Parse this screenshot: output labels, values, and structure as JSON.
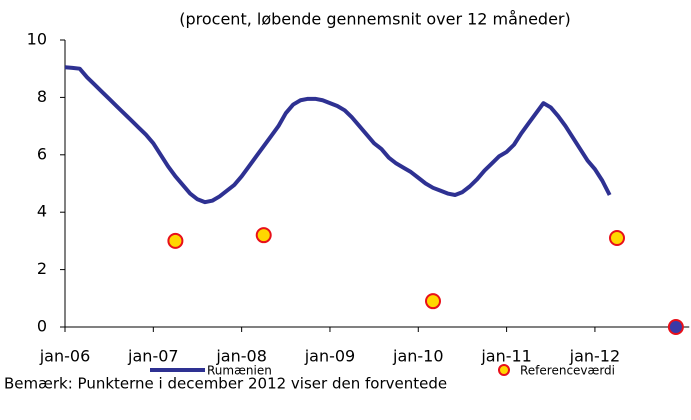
{
  "chart_data": {
    "type": "line",
    "title": "(procent, løbende gennemsnit over 12 måneder)",
    "note": "Bemærk: Punkterne i december 2012  viser den forventede",
    "categories": [
      "jan-06",
      null,
      null,
      null,
      null,
      null,
      null,
      null,
      null,
      null,
      null,
      null,
      "jan-07",
      null,
      null,
      null,
      null,
      null,
      null,
      null,
      null,
      null,
      null,
      null,
      "jan-08",
      null,
      null,
      null,
      null,
      null,
      null,
      null,
      null,
      null,
      null,
      null,
      "jan-09",
      null,
      null,
      null,
      null,
      null,
      null,
      null,
      null,
      null,
      null,
      null,
      "jan-10",
      null,
      null,
      null,
      null,
      null,
      null,
      null,
      null,
      null,
      null,
      null,
      "jan-11",
      null,
      null,
      null,
      null,
      null,
      null,
      null,
      null,
      null,
      null,
      null,
      "jan-12",
      null,
      null,
      null,
      null,
      null,
      null,
      null,
      null,
      null,
      null,
      null,
      null
    ],
    "series": [
      {
        "name": "Rumænien",
        "type": "line",
        "color": "#2e3192",
        "values": [
          9.05,
          9.03,
          9.0,
          8.7,
          8.45,
          8.2,
          7.95,
          7.7,
          7.45,
          7.2,
          6.95,
          6.7,
          6.4,
          6.0,
          5.6,
          5.25,
          4.95,
          4.65,
          4.45,
          4.35,
          4.4,
          4.55,
          4.75,
          4.95,
          5.25,
          5.6,
          5.95,
          6.3,
          6.65,
          7.0,
          7.45,
          7.75,
          7.9,
          7.95,
          7.95,
          7.9,
          7.8,
          7.7,
          7.55,
          7.3,
          7.0,
          6.7,
          6.4,
          6.2,
          5.9,
          5.7,
          5.55,
          5.4,
          5.2,
          5.0,
          4.85,
          4.75,
          4.65,
          4.6,
          4.7,
          4.9,
          5.15,
          5.45,
          5.7,
          5.95,
          6.1,
          6.35,
          6.75,
          7.1,
          7.45,
          7.8,
          7.65,
          7.35,
          7.0,
          6.6,
          6.2,
          5.8,
          5.5,
          5.1,
          4.6,
          null,
          null,
          null,
          null,
          null,
          null,
          null,
          null,
          null,
          null
        ]
      },
      {
        "name": "Referenceværdi",
        "type": "scatter",
        "color": "#ffd700",
        "edge_color": "#e8101a",
        "values": [
          null,
          null,
          null,
          null,
          null,
          null,
          null,
          null,
          null,
          null,
          null,
          null,
          null,
          null,
          null,
          3.0,
          null,
          null,
          null,
          null,
          null,
          null,
          null,
          null,
          null,
          null,
          null,
          3.2,
          null,
          null,
          null,
          null,
          null,
          null,
          null,
          null,
          null,
          null,
          null,
          null,
          null,
          null,
          null,
          null,
          null,
          null,
          null,
          null,
          null,
          null,
          0.9,
          null,
          null,
          null,
          null,
          null,
          null,
          null,
          null,
          null,
          null,
          null,
          null,
          null,
          null,
          null,
          null,
          null,
          null,
          null,
          null,
          null,
          null,
          null,
          null,
          3.1,
          null,
          null,
          null,
          null,
          null,
          null,
          null,
          0,
          null
        ],
        "point_colors": [
          null,
          null,
          null,
          null,
          null,
          null,
          null,
          null,
          null,
          null,
          null,
          null,
          null,
          null,
          null,
          "#ffd700",
          null,
          null,
          null,
          null,
          null,
          null,
          null,
          null,
          null,
          null,
          null,
          "#ffd700",
          null,
          null,
          null,
          null,
          null,
          null,
          null,
          null,
          null,
          null,
          null,
          null,
          null,
          null,
          null,
          null,
          null,
          null,
          null,
          null,
          null,
          null,
          "#ffd700",
          null,
          null,
          null,
          null,
          null,
          null,
          null,
          null,
          null,
          null,
          null,
          null,
          null,
          null,
          null,
          null,
          null,
          null,
          null,
          null,
          null,
          null,
          null,
          null,
          "#ffd700",
          null,
          null,
          null,
          null,
          null,
          null,
          null,
          "#3a3aa8",
          null
        ]
      }
    ],
    "ylim": [
      0,
      10
    ],
    "yticks": [
      0,
      2,
      4,
      6,
      8,
      10
    ],
    "grid": false
  }
}
